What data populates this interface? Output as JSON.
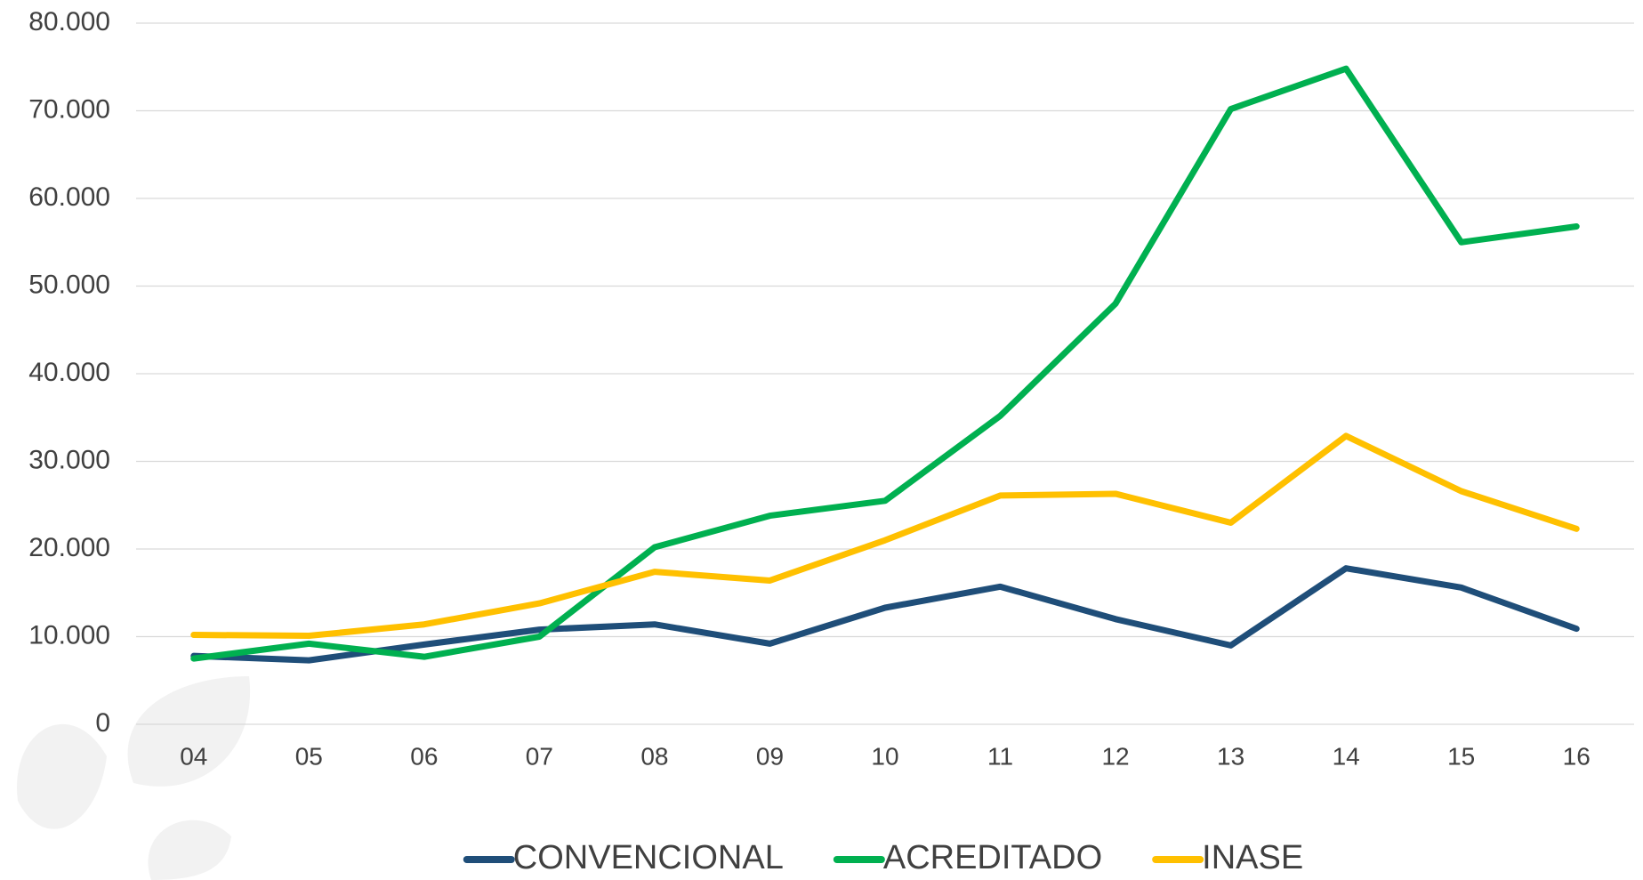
{
  "chart_data": {
    "type": "line",
    "categories": [
      "04",
      "05",
      "06",
      "07",
      "08",
      "09",
      "10",
      "11",
      "12",
      "13",
      "14",
      "15",
      "16"
    ],
    "series": [
      {
        "name": "CONVENCIONAL",
        "color": "#1f4e79",
        "values": [
          7800,
          7300,
          9100,
          10800,
          11400,
          9200,
          13300,
          15700,
          12000,
          9000,
          17800,
          15600,
          10900
        ]
      },
      {
        "name": "ACREDITADO",
        "color": "#00b050",
        "values": [
          7500,
          9200,
          7700,
          10000,
          20200,
          23800,
          25500,
          35200,
          48000,
          70200,
          74800,
          55000,
          56800
        ]
      },
      {
        "name": "INASE",
        "color": "#ffc000",
        "values": [
          10200,
          10100,
          11400,
          13800,
          17400,
          16400,
          21000,
          26100,
          26300,
          23000,
          32900,
          26600,
          22300
        ]
      }
    ],
    "ylim": [
      0,
      80000
    ],
    "yticks": [
      0,
      {
        "value": 10000,
        "label": "10.000"
      },
      {
        "value": 20000,
        "label": "20.000"
      },
      {
        "value": 30000,
        "label": "30.000"
      },
      {
        "value": 40000,
        "label": "40.000"
      },
      {
        "value": 50000,
        "label": "50.000"
      },
      {
        "value": 60000,
        "label": "60.000"
      },
      {
        "value": 70000,
        "label": "70.000"
      },
      {
        "value": 80000,
        "label": "80.000"
      }
    ],
    "grid": true,
    "legend": "bottom"
  }
}
